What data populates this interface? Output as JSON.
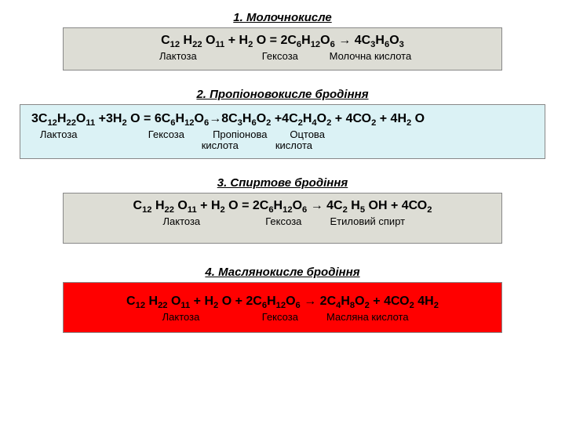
{
  "sections": [
    {
      "title": "1. Молочнокисле",
      "block_bg": "#ddddd5",
      "block_width": 560,
      "formula_html": "С<sub>12</sub> Н<sub>22</sub> О<sub>11</sub> + Н<sub>2</sub> О = 2С<sub>6</sub>Н<sub>12</sub>О<sub>6</sub> → 4С<sub>3</sub>Н<sub>6</sub>О<sub>3</sub>",
      "labels": "  Лактоза                       Гексоза           Молочна кислота"
    },
    {
      "title": "2. Пропіоновокисле бродіння",
      "block_bg": "#dbf2f5",
      "block_width": 670,
      "formula_html": "3С<sub>12</sub>Н<sub>22</sub>О<sub>11</sub> +3Н<sub>2</sub> О = 6С<sub>6</sub>Н<sub>12</sub>О<sub>6</sub>→8С<sub>3</sub>Н<sub>6</sub>О<sub>2</sub> +4С<sub>2</sub>Н<sub>4</sub>О<sub>2</sub> + 4СО<sub>2</sub> + 4Н<sub>2</sub> О",
      "labels_line1": "   Лактоза                         Гексоза          Пропіонова        Оцтова",
      "labels_line2": "                                                            кислота             кислота"
    },
    {
      "title": "3. Спиртове бродіння",
      "block_bg": "#ddddd5",
      "block_width": 560,
      "formula_html": "С<sub>12</sub> Н<sub>22</sub> О<sub>11</sub> + Н<sub>2</sub> О = 2С<sub>6</sub>Н<sub>12</sub>О<sub>6</sub> → 4С<sub>2</sub> Н<sub>5</sub> ОН + 4СО<sub>2</sub>",
      "labels": " Лактоза                       Гексоза          Етиловий спирт"
    },
    {
      "title": "4. Маслянокисле бродіння",
      "block_bg": "#ff0000",
      "block_width": 560,
      "formula_html": "С<sub>12</sub> Н<sub>22</sub> О<sub>11</sub> + Н<sub>2</sub> О + 2С<sub>6</sub>Н<sub>12</sub>О<sub>6</sub> → 2С<sub>4</sub>Н<sub>8</sub>О<sub>2</sub> + 4СО<sub>2</sub> 4Н<sub>2</sub>",
      "labels": "  Лактоза                      Гексоза          Масляна кислота"
    }
  ],
  "colors": {
    "page_bg": "#ffffff",
    "text": "#000000",
    "box_border": "#888888"
  },
  "typography": {
    "title_fontsize_pt": 11,
    "formula_fontsize_pt": 12,
    "label_fontsize_pt": 10,
    "font_family": "Arial"
  }
}
